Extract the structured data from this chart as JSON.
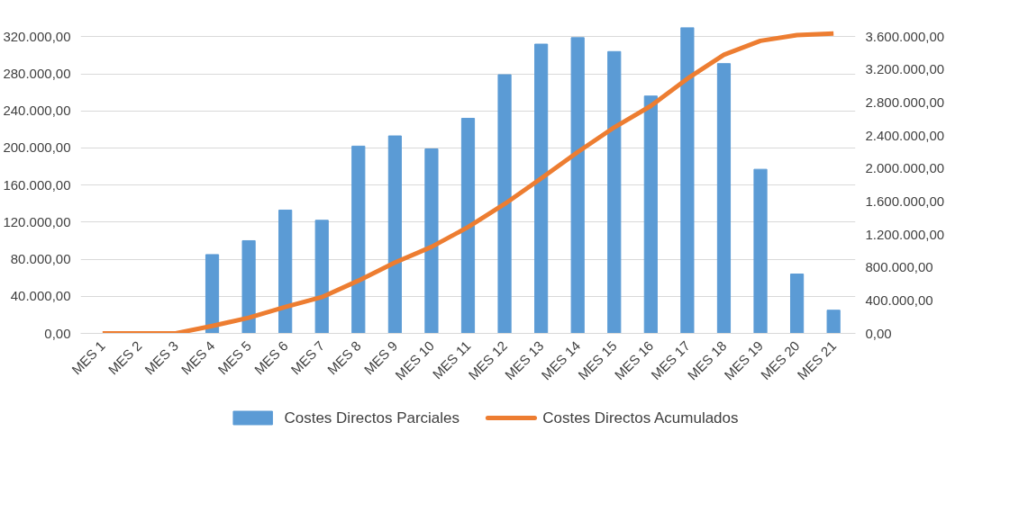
{
  "chart_data": {
    "type": "bar",
    "categories": [
      "MES 1",
      "MES 2",
      "MES 3",
      "MES 4",
      "MES 5",
      "MES 6",
      "MES 7",
      "MES 8",
      "MES 9",
      "MES 10",
      "MES 11",
      "MES 12",
      "MES 13",
      "MES 14",
      "MES 15",
      "MES 16",
      "MES 17",
      "MES 18",
      "MES 19",
      "MES 20",
      "MES 21"
    ],
    "series": [
      {
        "name": "Costes Directos Parciales",
        "color": "#5b9bd5",
        "values": [
          0,
          0,
          0,
          85000,
          100000,
          133000,
          122000,
          202000,
          213000,
          199000,
          232000,
          279000,
          312000,
          319000,
          304000,
          256000,
          330000,
          291000,
          177000,
          64000,
          25000
        ]
      },
      {
        "name": "Costes Directos Acumulados",
        "type": "line",
        "axis": "y2",
        "color": "#ed7d31",
        "values": [
          0,
          0,
          0,
          90000,
          190000,
          320000,
          440000,
          640000,
          860000,
          1050000,
          1290000,
          1570000,
          1880000,
          2200000,
          2500000,
          2760000,
          3090000,
          3380000,
          3550000,
          3620000,
          3640000
        ]
      }
    ],
    "ylim": [
      0,
      330000
    ],
    "yticks": [
      {
        "value": 0,
        "label": "0,00"
      },
      {
        "value": 40000,
        "label": "40.000,00"
      },
      {
        "value": 80000,
        "label": "80.000,00"
      },
      {
        "value": 120000,
        "label": "120.000,00"
      },
      {
        "value": 160000,
        "label": "160.000,00"
      },
      {
        "value": 200000,
        "label": "200.000,00"
      },
      {
        "value": 240000,
        "label": "240.000,00"
      },
      {
        "value": 280000,
        "label": "280.000,00"
      },
      {
        "value": 320000,
        "label": "320.000,00"
      }
    ],
    "y2lim": [
      0,
      3712500
    ],
    "y2ticks": [
      {
        "value": 0,
        "label": "0,00"
      },
      {
        "value": 400000,
        "label": "400.000,00"
      },
      {
        "value": 800000,
        "label": "800.000,00"
      },
      {
        "value": 1200000,
        "label": "1.200.000,00"
      },
      {
        "value": 1600000,
        "label": "1.600.000,00"
      },
      {
        "value": 2000000,
        "label": "2.000.000,00"
      },
      {
        "value": 2400000,
        "label": "2.400.000,00"
      },
      {
        "value": 2800000,
        "label": "2.800.000,00"
      },
      {
        "value": 3200000,
        "label": "3.200.000,00"
      },
      {
        "value": 3600000,
        "label": "3.600.000,00"
      }
    ],
    "grid": "y",
    "legend": "bottom",
    "marker": "none",
    "line_style": "solid"
  }
}
